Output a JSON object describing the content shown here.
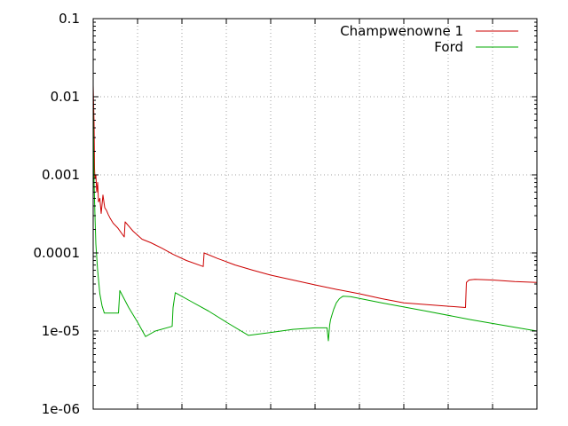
{
  "chart_data": {
    "type": "line",
    "title": "",
    "xlabel": "",
    "ylabel": "",
    "y_scale": "log",
    "ylim": [
      1e-06,
      0.1
    ],
    "xlim": [
      0,
      1000
    ],
    "x_tick_labels_shown": false,
    "grid": true,
    "legend_position": "top-right",
    "y_ticks": [
      {
        "value": 0.1,
        "label": "0.1"
      },
      {
        "value": 0.01,
        "label": "0.01"
      },
      {
        "value": 0.001,
        "label": "0.001"
      },
      {
        "value": 0.0001,
        "label": "0.0001"
      },
      {
        "value": 1e-05,
        "label": "1e-05"
      },
      {
        "value": 1e-06,
        "label": "1e-06"
      }
    ],
    "x_ticks": [
      0,
      100,
      200,
      300,
      400,
      500,
      600,
      700,
      800,
      900,
      1000
    ],
    "series": [
      {
        "name": "Champwenowne 1",
        "color": "#cc0000",
        "points": [
          [
            0,
            0.014
          ],
          [
            2,
            0.0045
          ],
          [
            3,
            0.0012
          ],
          [
            4,
            0.0009
          ],
          [
            6,
            0.001
          ],
          [
            8,
            0.0006
          ],
          [
            10,
            0.0008
          ],
          [
            12,
            0.00045
          ],
          [
            15,
            0.0005
          ],
          [
            18,
            0.00032
          ],
          [
            22,
            0.00055
          ],
          [
            26,
            0.00038
          ],
          [
            30,
            0.00035
          ],
          [
            34,
            0.00031
          ],
          [
            38,
            0.00028
          ],
          [
            45,
            0.00024
          ],
          [
            55,
            0.00021
          ],
          [
            70,
            0.00016
          ],
          [
            72,
            0.00025
          ],
          [
            90,
            0.00019
          ],
          [
            110,
            0.00015
          ],
          [
            130,
            0.000135
          ],
          [
            155,
            0.000115
          ],
          [
            180,
            9.6e-05
          ],
          [
            210,
            8e-05
          ],
          [
            248,
            6.7e-05
          ],
          [
            250,
            0.0001
          ],
          [
            280,
            8.5e-05
          ],
          [
            320,
            7e-05
          ],
          [
            360,
            6e-05
          ],
          [
            400,
            5.2e-05
          ],
          [
            450,
            4.5e-05
          ],
          [
            500,
            3.9e-05
          ],
          [
            550,
            3.4e-05
          ],
          [
            600,
            3e-05
          ],
          [
            650,
            2.6e-05
          ],
          [
            700,
            2.3e-05
          ],
          [
            839,
            2e-05
          ],
          [
            841,
            4.2e-05
          ],
          [
            847,
            4.5e-05
          ],
          [
            860,
            4.6e-05
          ],
          [
            900,
            4.5e-05
          ],
          [
            950,
            4.3e-05
          ],
          [
            1000,
            4.2e-05
          ]
        ]
      },
      {
        "name": "Ford",
        "color": "#00aa00",
        "points": [
          [
            0,
            0.009
          ],
          [
            1,
            0.002
          ],
          [
            2,
            0.0008
          ],
          [
            4,
            0.0003
          ],
          [
            6,
            0.00013
          ],
          [
            10,
            6e-05
          ],
          [
            15,
            3e-05
          ],
          [
            20,
            2.1e-05
          ],
          [
            25,
            1.7e-05
          ],
          [
            30,
            1.7e-05
          ],
          [
            57,
            1.7e-05
          ],
          [
            60,
            3.3e-05
          ],
          [
            80,
            2e-05
          ],
          [
            100,
            1.3e-05
          ],
          [
            118,
            8.5e-06
          ],
          [
            140,
            1e-05
          ],
          [
            178,
            1.15e-05
          ],
          [
            180,
            2e-05
          ],
          [
            185,
            3.1e-05
          ],
          [
            220,
            2.4e-05
          ],
          [
            260,
            1.8e-05
          ],
          [
            300,
            1.3e-05
          ],
          [
            350,
            8.8e-06
          ],
          [
            400,
            9.6e-06
          ],
          [
            450,
            1.05e-05
          ],
          [
            500,
            1.1e-05
          ],
          [
            527,
            1.1e-05
          ],
          [
            528,
            9.5e-06
          ],
          [
            530,
            7.5e-06
          ],
          [
            533,
            1.2e-05
          ],
          [
            535,
            1.4e-05
          ],
          [
            538,
            1.6e-05
          ],
          [
            542,
            1.9e-05
          ],
          [
            548,
            2.3e-05
          ],
          [
            555,
            2.6e-05
          ],
          [
            563,
            2.8e-05
          ],
          [
            580,
            2.75e-05
          ],
          [
            650,
            2.3e-05
          ],
          [
            750,
            1.8e-05
          ],
          [
            850,
            1.4e-05
          ],
          [
            950,
            1.12e-05
          ],
          [
            1000,
            1e-05
          ]
        ]
      }
    ]
  }
}
